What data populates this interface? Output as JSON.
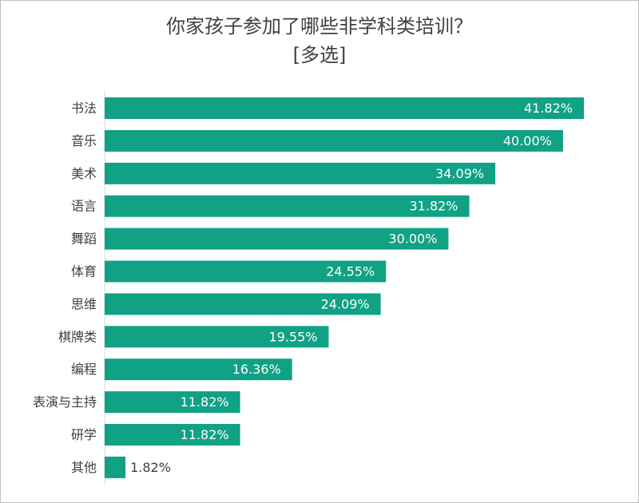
{
  "chart_data": {
    "type": "bar",
    "orientation": "horizontal",
    "title": "你家孩子参加了哪些非学科类培训？",
    "subtitle": "[多选]",
    "categories": [
      "书法",
      "音乐",
      "美术",
      "语言",
      "舞蹈",
      "体育",
      "思维",
      "棋牌类",
      "编程",
      "表演与主持",
      "研学",
      "其他"
    ],
    "values": [
      41.82,
      40.0,
      34.09,
      31.82,
      30.0,
      24.55,
      24.09,
      19.55,
      16.36,
      11.82,
      11.82,
      1.82
    ],
    "value_labels": [
      "41.82%",
      "40.00%",
      "34.09%",
      "31.82%",
      "30.00%",
      "24.55%",
      "24.09%",
      "19.55%",
      "16.36%",
      "11.82%",
      "11.82%",
      "1.82%"
    ],
    "unit": "%",
    "xlim": [
      0,
      41.82
    ],
    "bar_color": "#11a184",
    "grid": false,
    "legend": "none"
  }
}
